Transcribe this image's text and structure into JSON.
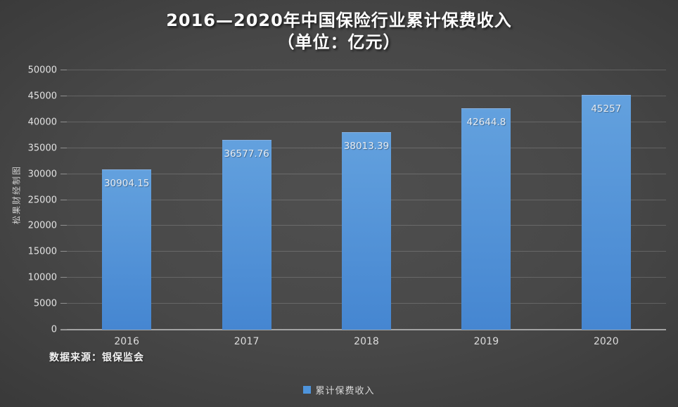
{
  "title": {
    "line1": "2016—2020年中国保险行业累计保费收入",
    "line2": "（单位：亿元）"
  },
  "watermark": "松果财经制图",
  "source_note": "数据来源：银保监会",
  "legend": {
    "label": "累计保费收入"
  },
  "colors": {
    "bar_top": "#63A1DE",
    "bar_bottom": "#4586D1",
    "legend_marker": "#4E94DC"
  },
  "chart_data": {
    "type": "bar",
    "title": "2016—2020年中国保险行业累计保费收入（单位：亿元）",
    "categories": [
      "2016",
      "2017",
      "2018",
      "2019",
      "2020"
    ],
    "series": [
      {
        "name": "累计保费收入",
        "values": [
          30904.15,
          36577.76,
          38013.39,
          42644.8,
          45257
        ],
        "value_labels": [
          "30904.15",
          "36577.76",
          "38013.39",
          "42644.8",
          "45257"
        ]
      }
    ],
    "xlabel": "",
    "ylabel": "",
    "ylim": [
      0,
      50000
    ],
    "yticks": [
      0,
      5000,
      10000,
      15000,
      20000,
      25000,
      30000,
      35000,
      40000,
      45000,
      50000
    ],
    "grid": true,
    "legend_position": "bottom-center"
  }
}
